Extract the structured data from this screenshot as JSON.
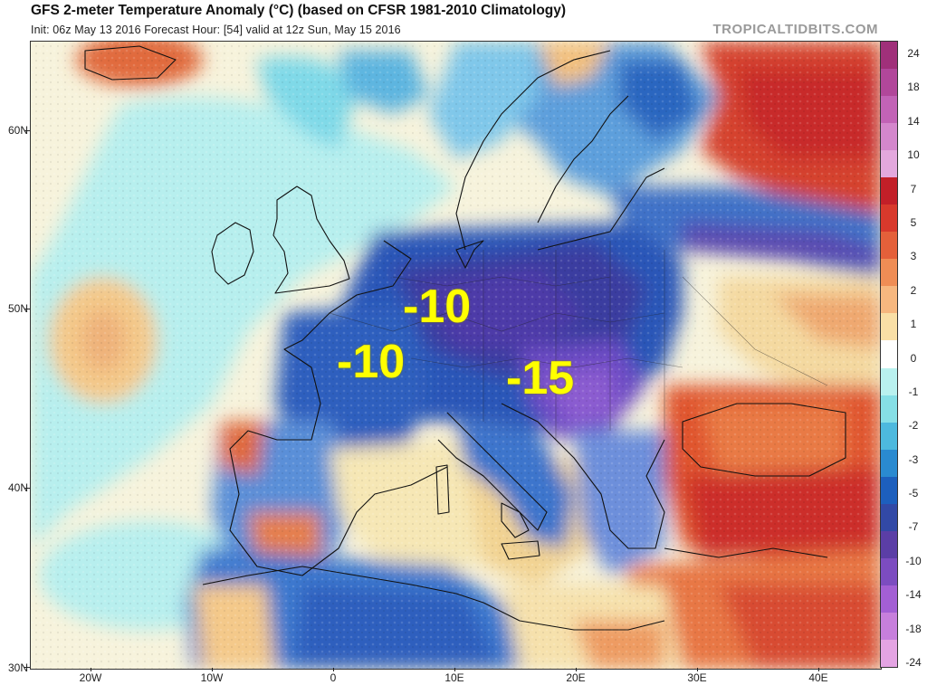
{
  "header": {
    "title": "GFS 2-meter Temperature Anomaly (°C) (based on CFSR 1981-2010 Climatology)",
    "subtitle": "Init: 06z May 13 2016   Forecast Hour: [54]   valid at 12z Sun, May 15 2016",
    "brand": "TROPICALTIDBITS.COM"
  },
  "annotations": [
    "-10",
    "-10",
    "-15"
  ],
  "axes": {
    "lat_labels": [
      "60N",
      "50N",
      "40N",
      "30N"
    ],
    "lon_labels": [
      "20W",
      "10W",
      "0",
      "10E",
      "20E",
      "30E",
      "40E"
    ]
  },
  "colorbar": {
    "labels": [
      "24",
      "18",
      "14",
      "10",
      "7",
      "5",
      "3",
      "2",
      "1",
      "0",
      "-1",
      "-2",
      "-3",
      "-5",
      "-7",
      "-10",
      "-14",
      "-18",
      "-24"
    ],
    "colors": [
      "#a0307a",
      "#b1479a",
      "#c263b6",
      "#d487cc",
      "#e3a8dd",
      "#c21f28",
      "#d8392c",
      "#e4603a",
      "#ef8d55",
      "#f6b77f",
      "#f9dfa6",
      "#ffffff",
      "#b9f1ef",
      "#86dfe6",
      "#4db9de",
      "#2a8ad0",
      "#1d5fbd",
      "#3249a6",
      "#5b3ea6",
      "#7c4cc0",
      "#a35fd4",
      "#c77fdc",
      "#e4a4e3"
    ]
  }
}
